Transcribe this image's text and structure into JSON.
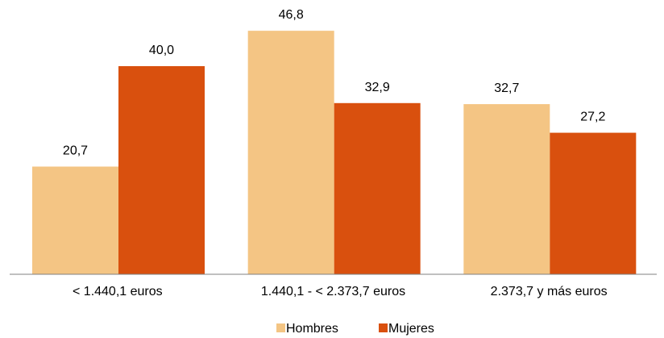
{
  "chart_data": {
    "type": "bar",
    "categories": [
      "< 1.440,1 euros",
      "1.440,1 - < 2.373,7 euros",
      "2.373,7 y más euros"
    ],
    "series": [
      {
        "name": "Hombres",
        "color": "#F4C584",
        "values": [
          20.7,
          46.8,
          32.7
        ],
        "value_labels": [
          "20,7",
          "46,8",
          "32,7"
        ]
      },
      {
        "name": "Mujeres",
        "color": "#D9500E",
        "values": [
          40.0,
          32.9,
          27.2
        ],
        "value_labels": [
          "40,0",
          "32,9",
          "27,2"
        ]
      }
    ],
    "title": "",
    "xlabel": "",
    "ylabel": "",
    "ylim": [
      0,
      50
    ],
    "grid": false,
    "legend_position": "bottom",
    "axis_color": "#808080"
  }
}
